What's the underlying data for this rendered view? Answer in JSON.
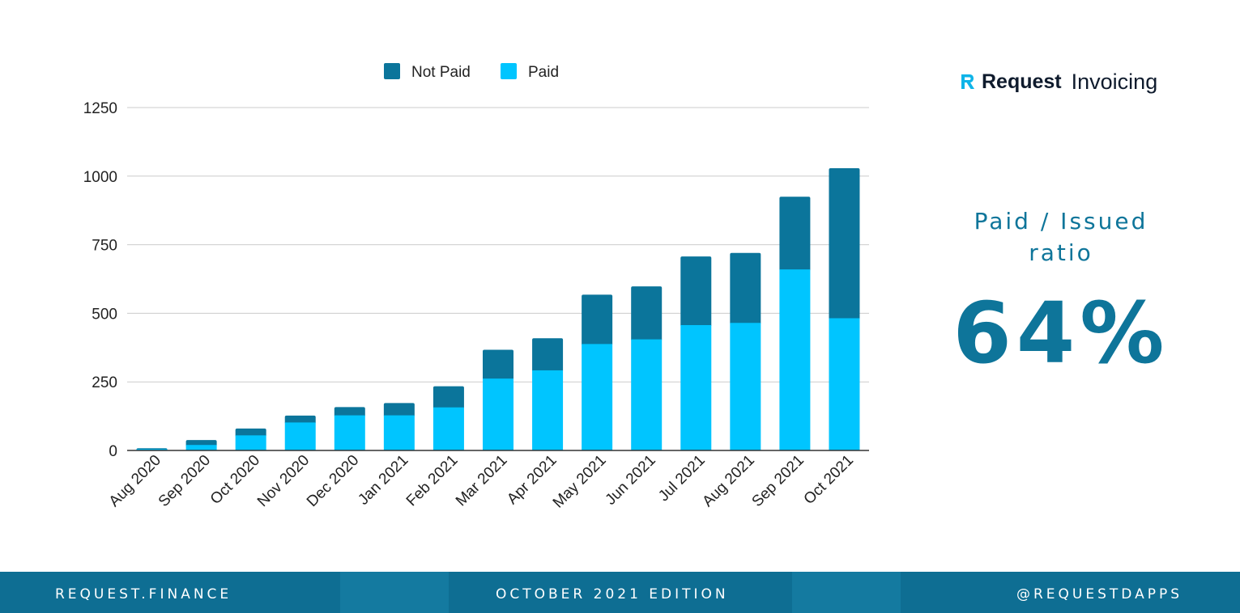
{
  "chart_data": {
    "type": "bar",
    "stacked": true,
    "categories": [
      "Aug 2020",
      "Sep 2020",
      "Oct 2020",
      "Nov 2020",
      "Dec 2020",
      "Jan 2021",
      "Feb 2021",
      "Mar 2021",
      "Apr 2021",
      "May 2021",
      "Jun 2021",
      "Jul 2021",
      "Aug 2021",
      "Sep 2021",
      "Oct 2021"
    ],
    "series": [
      {
        "name": "Paid",
        "color": "#00c5ff",
        "values": [
          5,
          20,
          55,
          102,
          128,
          128,
          157,
          262,
          292,
          388,
          405,
          457,
          465,
          660,
          482
        ]
      },
      {
        "name": "Not Paid",
        "color": "#0b759b",
        "values": [
          3,
          18,
          25,
          25,
          30,
          45,
          77,
          105,
          117,
          180,
          193,
          250,
          255,
          265,
          547
        ]
      }
    ],
    "yticks": [
      "0",
      "250",
      "500",
      "750",
      "1000",
      "1250"
    ],
    "ylim": [
      0,
      1250
    ],
    "legend": [
      "Not Paid",
      "Paid"
    ],
    "legend_position": "top-center",
    "title": "",
    "xlabel": "",
    "ylabel": ""
  },
  "brand": {
    "name": "Request",
    "product": "Invoicing"
  },
  "ratio": {
    "label_line1": "Paid / Issued",
    "label_line2": "ratio",
    "value": "64%"
  },
  "footer": {
    "left": "REQUEST.FINANCE",
    "center": "OCTOBER 2021 EDITION",
    "right": "@REQUESTDAPPS"
  }
}
